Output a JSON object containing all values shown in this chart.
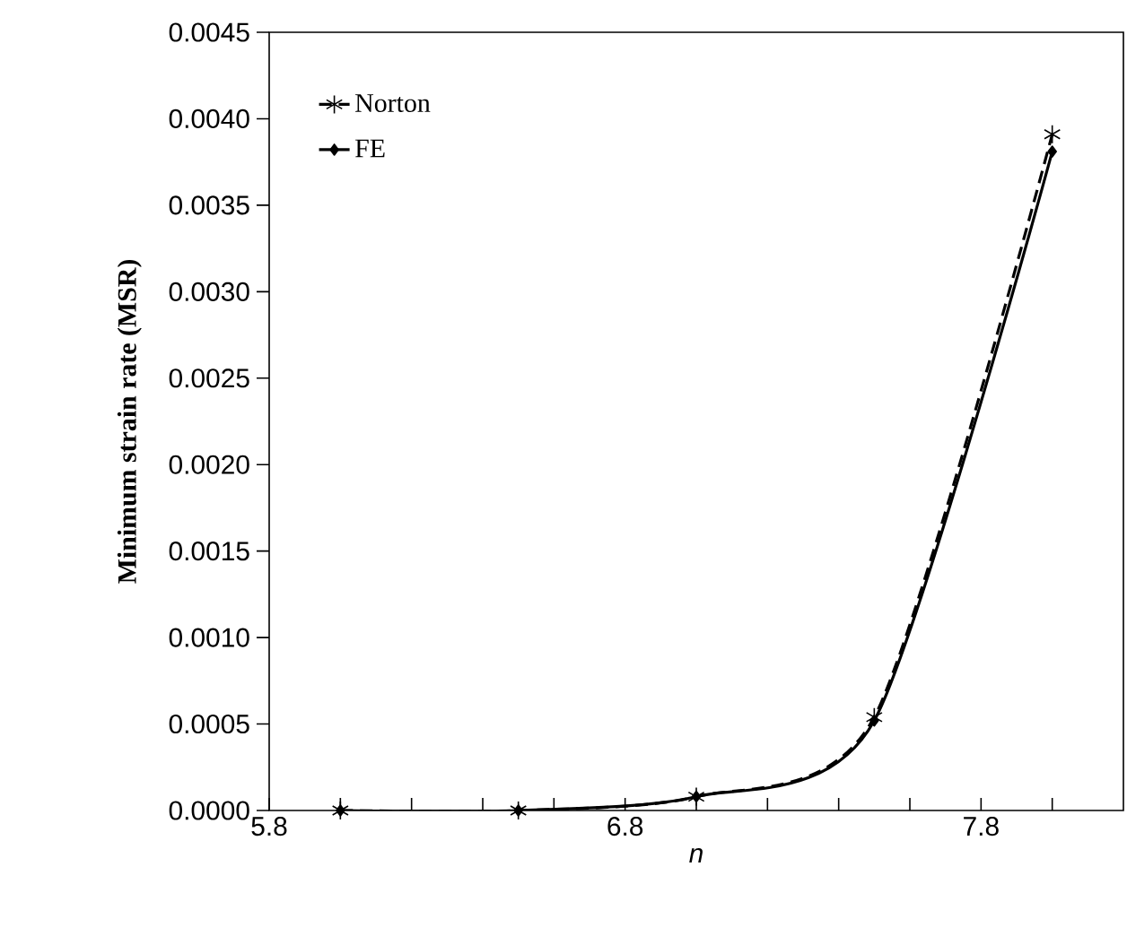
{
  "chart_data": {
    "type": "line",
    "xlabel": "n",
    "ylabel": "Minimum strain rate (MSR)",
    "x": [
      6.0,
      6.5,
      7.0,
      7.5,
      8.0
    ],
    "series": [
      {
        "name": "Norton",
        "color": "#000000",
        "marker": "cross",
        "line_style": "dashed",
        "values": [
          0.0,
          0.0,
          8e-05,
          0.00054,
          0.00391
        ]
      },
      {
        "name": "FE",
        "color": "#000000",
        "marker": "diamond",
        "line_style": "solid",
        "values": [
          0.0,
          0.0,
          8e-05,
          0.00052,
          0.00381
        ]
      }
    ],
    "xlim": [
      5.8,
      8.2
    ],
    "xticks": [
      5.8,
      {
        "value": 6.0,
        "label": null
      },
      {
        "value": 6.2,
        "label": null
      },
      {
        "value": 6.4,
        "label": null
      },
      {
        "value": 6.6,
        "label": null
      },
      6.8,
      {
        "value": 7.0,
        "label": null
      },
      {
        "value": 7.2,
        "label": null
      },
      {
        "value": 7.4,
        "label": null
      },
      {
        "value": 7.6,
        "label": null
      },
      7.8,
      {
        "value": 8.0,
        "label": null
      }
    ],
    "ylim": [
      0,
      0.0045
    ],
    "yticks": [
      {
        "value": 0,
        "label": "0.0000"
      },
      {
        "value": 0.0005,
        "label": "0.0005"
      },
      {
        "value": 0.001,
        "label": "0.0010"
      },
      {
        "value": 0.0015,
        "label": "0.0015"
      },
      {
        "value": 0.002,
        "label": "0.0020"
      },
      {
        "value": 0.0025,
        "label": "0.0025"
      },
      {
        "value": 0.003,
        "label": "0.0030"
      },
      {
        "value": 0.0035,
        "label": "0.0035"
      },
      {
        "value": 0.004,
        "label": "0.0040"
      },
      0.0045
    ],
    "grid": false,
    "legend": "top left"
  }
}
